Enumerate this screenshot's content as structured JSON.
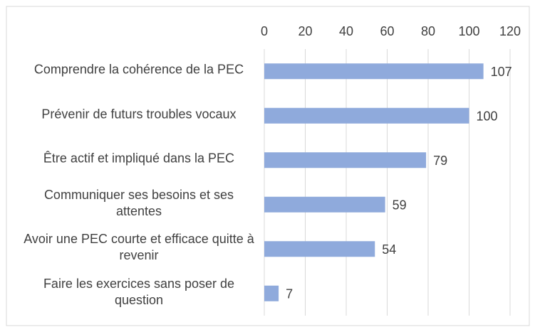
{
  "chart_data": {
    "type": "bar",
    "orientation": "horizontal",
    "categories": [
      "Comprendre la cohérence de la PEC",
      "Prévenir de futurs troubles vocaux",
      "Être actif et impliqué dans la PEC",
      "Communiquer ses besoins et ses attentes",
      "Avoir une PEC courte et efficace quitte à revenir",
      "Faire les exercices sans poser de question"
    ],
    "values": [
      107,
      100,
      79,
      59,
      54,
      7
    ],
    "color": "#8faadc",
    "xlim": [
      0,
      120
    ],
    "xticks": [
      0,
      20,
      40,
      60,
      80,
      100,
      120
    ],
    "grid": true
  }
}
